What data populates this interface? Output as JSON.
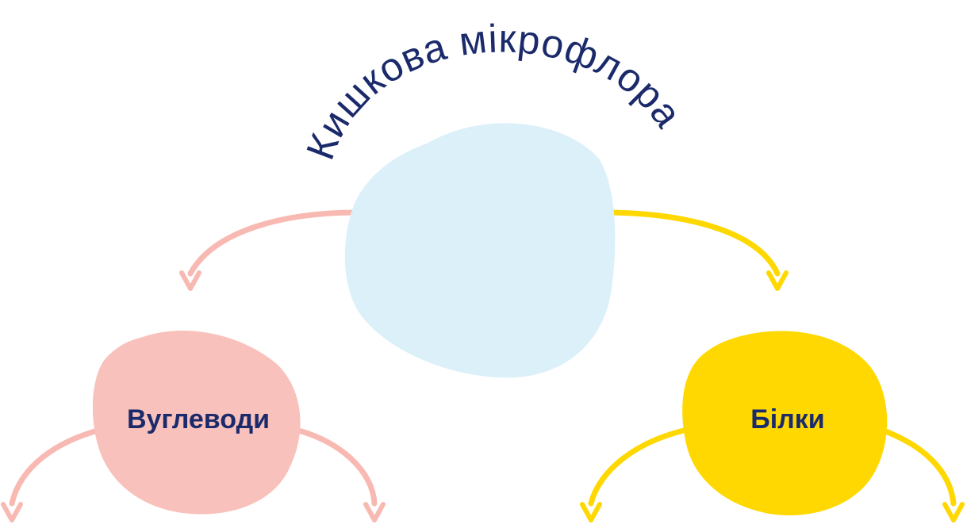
{
  "title": "Кишкова мікрофлора",
  "nodes": {
    "root": {
      "label": ""
    },
    "carbs": {
      "label": "Вуглеводи"
    },
    "proteins": {
      "label": "Білки"
    }
  },
  "colors": {
    "title_text": "#1b2a6b",
    "label_text": "#1b2a6b",
    "root_blob": "#dcf0fa",
    "carbs_blob": "#f8c1bb",
    "carbs_arrow": "#f8b9b2",
    "proteins_blob": "#fed800",
    "proteins_arrow": "#fed800"
  }
}
